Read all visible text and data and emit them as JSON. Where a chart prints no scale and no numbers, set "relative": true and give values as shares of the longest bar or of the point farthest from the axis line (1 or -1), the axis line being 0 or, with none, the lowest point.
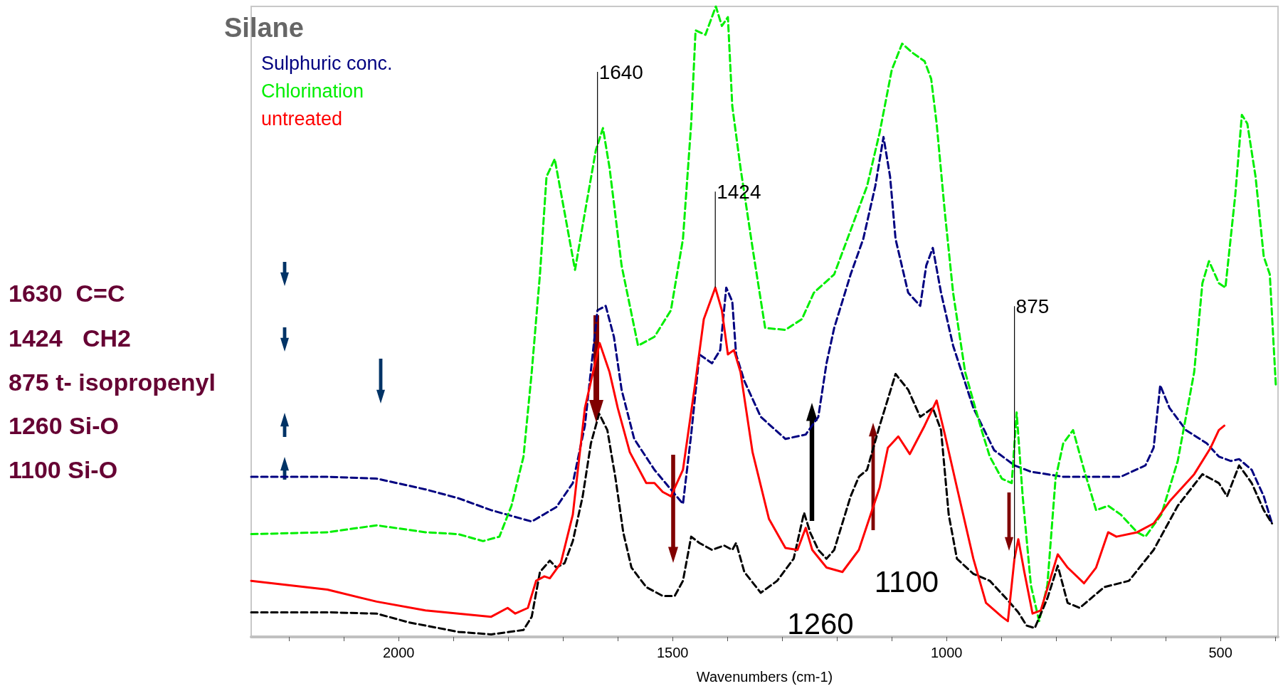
{
  "chart_data": {
    "type": "line",
    "title": "Silane",
    "xlabel": "Wavenumbers (cm-1)",
    "relative": true,
    "xlim": [
      2269,
      395
    ],
    "xticks": [
      {
        "value": 2200,
        "label": null
      },
      {
        "value": 2100,
        "label": null
      },
      2000,
      {
        "value": 1900,
        "label": null
      },
      {
        "value": 1800,
        "label": null
      },
      {
        "value": 1700,
        "label": null
      },
      {
        "value": 1600,
        "label": null
      },
      1500,
      {
        "value": 1400,
        "label": null
      },
      {
        "value": 1300,
        "label": null
      },
      {
        "value": 1200,
        "label": null
      },
      {
        "value": 1100,
        "label": null
      },
      1000,
      {
        "value": 900,
        "label": null
      },
      {
        "value": 800,
        "label": null
      },
      {
        "value": 700,
        "label": null
      },
      {
        "value": 600,
        "label": null
      },
      500,
      {
        "value": 400,
        "label": null
      }
    ],
    "grid": false,
    "legend": "top left",
    "marker": "none",
    "series": [
      {
        "name": "Sulphuric conc.",
        "color": "#000080",
        "line_style": "dashed",
        "x": [
          2269,
          2130,
          2040,
          1951,
          1891,
          1831,
          1757,
          1712,
          1682,
          1660,
          1637,
          1622,
          1607,
          1593,
          1570,
          1533,
          1481,
          1466,
          1451,
          1428,
          1413,
          1402,
          1391,
          1384,
          1369,
          1339,
          1294,
          1257,
          1234,
          1219,
          1205,
          1175,
          1152,
          1130,
          1115,
          1103,
          1093,
          1070,
          1048,
          1037,
          1025,
          1010,
          988,
          951,
          913,
          876,
          846,
          787,
          712,
          682,
          637,
          622,
          610,
          593,
          563,
          525,
          503,
          481,
          466,
          443,
          421,
          406
        ],
        "values": [
          0.254,
          0.254,
          0.251,
          0.234,
          0.22,
          0.201,
          0.183,
          0.206,
          0.244,
          0.335,
          0.518,
          0.525,
          0.476,
          0.392,
          0.314,
          0.265,
          0.211,
          0.321,
          0.448,
          0.434,
          0.455,
          0.554,
          0.532,
          0.448,
          0.406,
          0.349,
          0.314,
          0.321,
          0.349,
          0.434,
          0.49,
          0.575,
          0.631,
          0.715,
          0.793,
          0.73,
          0.631,
          0.546,
          0.525,
          0.589,
          0.617,
          0.546,
          0.462,
          0.363,
          0.296,
          0.272,
          0.262,
          0.254,
          0.254,
          0.254,
          0.272,
          0.3,
          0.399,
          0.363,
          0.328,
          0.307,
          0.286,
          0.279,
          0.282,
          0.265,
          0.223,
          0.18
        ]
      },
      {
        "name": "Chlorination",
        "color": "#00ee00",
        "line_style": "dashed",
        "x": [
          2269,
          2130,
          2040,
          1951,
          1891,
          1846,
          1816,
          1794,
          1772,
          1757,
          1742,
          1730,
          1715,
          1697,
          1678,
          1660,
          1640,
          1627,
          1615,
          1593,
          1563,
          1533,
          1503,
          1481,
          1466,
          1458,
          1440,
          1421,
          1410,
          1399,
          1391,
          1376,
          1354,
          1331,
          1294,
          1264,
          1242,
          1205,
          1175,
          1145,
          1122,
          1100,
          1081,
          1063,
          1040,
          1028,
          1018,
          1003,
          988,
          966,
          936,
          921,
          899,
          881,
          872,
          861,
          846,
          831,
          816,
          801,
          787,
          769,
          749,
          727,
          705,
          682,
          652,
          637,
          608,
          578,
          548,
          533,
          521,
          503,
          491,
          473,
          461,
          451,
          436,
          421,
          410,
          399
        ],
        "values": [
          0.163,
          0.166,
          0.177,
          0.166,
          0.163,
          0.152,
          0.159,
          0.208,
          0.286,
          0.42,
          0.575,
          0.73,
          0.758,
          0.673,
          0.582,
          0.673,
          0.772,
          0.807,
          0.744,
          0.589,
          0.462,
          0.476,
          0.518,
          0.631,
          0.814,
          0.962,
          0.955,
          1.0,
          0.969,
          0.983,
          0.842,
          0.744,
          0.617,
          0.49,
          0.487,
          0.504,
          0.546,
          0.575,
          0.645,
          0.715,
          0.8,
          0.899,
          0.941,
          0.927,
          0.913,
          0.885,
          0.814,
          0.673,
          0.546,
          0.42,
          0.328,
          0.286,
          0.251,
          0.244,
          0.356,
          0.223,
          0.082,
          0.025,
          0.082,
          0.251,
          0.307,
          0.328,
          0.265,
          0.201,
          0.208,
          0.194,
          0.166,
          0.159,
          0.194,
          0.279,
          0.42,
          0.561,
          0.596,
          0.561,
          0.554,
          0.701,
          0.828,
          0.814,
          0.73,
          0.603,
          0.575,
          0.399
        ]
      },
      {
        "name": "untreated",
        "color": "#ff0000",
        "line_style": "solid",
        "x": [
          2269,
          2130,
          2040,
          1951,
          1891,
          1831,
          1801,
          1787,
          1764,
          1749,
          1734,
          1724,
          1704,
          1682,
          1660,
          1633,
          1615,
          1600,
          1578,
          1548,
          1533,
          1518,
          1503,
          1481,
          1458,
          1443,
          1422,
          1410,
          1399,
          1388,
          1376,
          1354,
          1324,
          1294,
          1272,
          1257,
          1245,
          1219,
          1190,
          1160,
          1122,
          1107,
          1088,
          1067,
          1040,
          1018,
          1003,
          981,
          951,
          928,
          899,
          888,
          876,
          869,
          858,
          843,
          828,
          797,
          779,
          749,
          727,
          705,
          690,
          652,
          622,
          593,
          548,
          518,
          503,
          493
        ],
        "values": [
          0.089,
          0.075,
          0.056,
          0.042,
          0.037,
          0.032,
          0.046,
          0.037,
          0.046,
          0.089,
          0.096,
          0.093,
          0.117,
          0.194,
          0.363,
          0.466,
          0.42,
          0.363,
          0.293,
          0.244,
          0.244,
          0.23,
          0.223,
          0.265,
          0.406,
          0.504,
          0.554,
          0.518,
          0.448,
          0.455,
          0.42,
          0.293,
          0.187,
          0.141,
          0.138,
          0.173,
          0.138,
          0.11,
          0.103,
          0.138,
          0.237,
          0.3,
          0.318,
          0.29,
          0.335,
          0.375,
          0.321,
          0.237,
          0.124,
          0.054,
          0.032,
          0.025,
          0.124,
          0.155,
          0.103,
          0.037,
          0.042,
          0.131,
          0.11,
          0.085,
          0.11,
          0.166,
          0.159,
          0.166,
          0.18,
          0.215,
          0.258,
          0.3,
          0.328,
          0.335
        ]
      },
      {
        "color": "#000000",
        "line_style": "dashed",
        "x": [
          2269,
          2130,
          2040,
          1981,
          1891,
          1831,
          1772,
          1757,
          1742,
          1724,
          1712,
          1697,
          1682,
          1664,
          1649,
          1634,
          1619,
          1604,
          1590,
          1575,
          1548,
          1518,
          1496,
          1481,
          1466,
          1451,
          1428,
          1406,
          1391,
          1384,
          1369,
          1339,
          1309,
          1279,
          1260,
          1249,
          1234,
          1219,
          1205,
          1175,
          1160,
          1145,
          1122,
          1093,
          1070,
          1048,
          1025,
          1010,
          996,
          981,
          951,
          921,
          891,
          869,
          854,
          839,
          816,
          797,
          779,
          757,
          712,
          667,
          622,
          578,
          533,
          503,
          488,
          466,
          443,
          421,
          406
        ],
        "values": [
          0.039,
          0.039,
          0.037,
          0.023,
          0.008,
          0.004,
          0.011,
          0.032,
          0.103,
          0.121,
          0.11,
          0.117,
          0.152,
          0.223,
          0.307,
          0.354,
          0.328,
          0.251,
          0.166,
          0.11,
          0.079,
          0.065,
          0.065,
          0.089,
          0.159,
          0.149,
          0.138,
          0.145,
          0.138,
          0.149,
          0.103,
          0.07,
          0.089,
          0.124,
          0.197,
          0.166,
          0.138,
          0.124,
          0.138,
          0.223,
          0.254,
          0.265,
          0.335,
          0.417,
          0.392,
          0.349,
          0.363,
          0.328,
          0.194,
          0.124,
          0.1,
          0.089,
          0.061,
          0.039,
          0.018,
          0.014,
          0.061,
          0.113,
          0.054,
          0.046,
          0.079,
          0.089,
          0.138,
          0.208,
          0.258,
          0.244,
          0.223,
          0.272,
          0.244,
          0.201,
          0.18
        ]
      }
    ],
    "annotations": [
      "1630  C=C",
      "1424   CH2",
      "875 t- isopropenyl",
      "1260 Si-O",
      "1100 Si-O",
      {
        "text": "1640",
        "x": 1637,
        "y": 0.518
      },
      {
        "text": "1424",
        "x": 1422,
        "y": 0.554
      },
      {
        "text": "875",
        "x": 876,
        "y": 0.124
      },
      "1100",
      "1260"
    ]
  }
}
